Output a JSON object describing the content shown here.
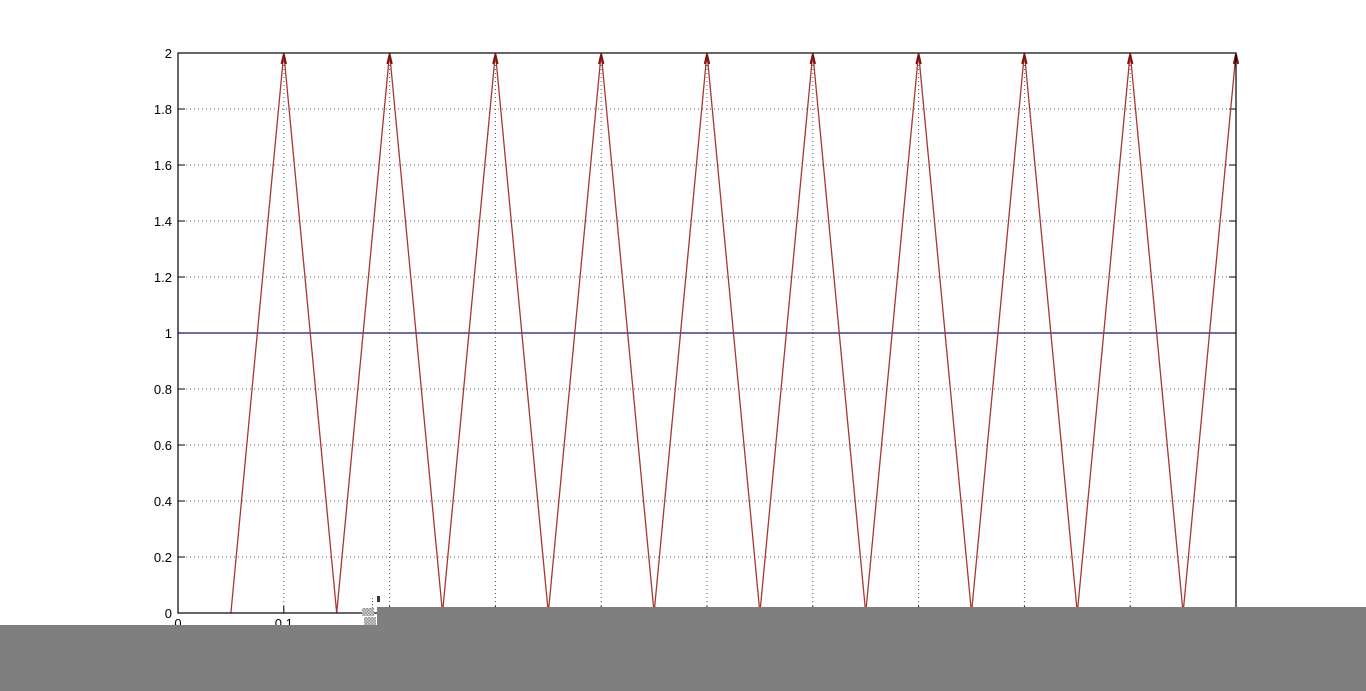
{
  "colors": {
    "background": "#ffffff",
    "axis_border": "#000000",
    "grid": "#5a5a5a",
    "carrier_line": "#a93630",
    "carrier_peak_tip": "#7d1410",
    "reference_line": "#181868",
    "overlay_gray": "#7f7f7f",
    "tick_label": "#000000"
  },
  "chart_data": {
    "type": "line",
    "title": "",
    "xlabel": "",
    "ylabel": "",
    "xlim": [
      0,
      1
    ],
    "ylim": [
      0,
      2
    ],
    "grid": "dotted",
    "legend": "none",
    "box": true,
    "x_ticks": [
      0,
      0.1,
      0.2,
      0.3,
      0.4,
      0.5,
      0.6,
      0.7,
      0.8,
      0.9,
      1.0
    ],
    "x_tick_labels_visible": [
      {
        "v": 0.0,
        "label": "0"
      },
      {
        "v": 0.1,
        "label": "0.1"
      }
    ],
    "y_ticks": [
      {
        "v": 0.0,
        "label": "0"
      },
      {
        "v": 0.2,
        "label": "0.2"
      },
      {
        "v": 0.4,
        "label": "0.4"
      },
      {
        "v": 0.6,
        "label": "0.6"
      },
      {
        "v": 0.8,
        "label": "0.8"
      },
      {
        "v": 1.0,
        "label": "1"
      },
      {
        "v": 1.2,
        "label": "1.2"
      },
      {
        "v": 1.4,
        "label": "1.4"
      },
      {
        "v": 1.6,
        "label": "1.6"
      },
      {
        "v": 1.8,
        "label": "1.8"
      },
      {
        "v": 2.0,
        "label": "2"
      }
    ],
    "x_gridlines": [
      0.1,
      0.2,
      0.3,
      0.4,
      0.5,
      0.6,
      0.7,
      0.8,
      0.9
    ],
    "y_gridlines": [
      0.2,
      0.4,
      0.6,
      0.8,
      1.0,
      1.2,
      1.4,
      1.6,
      1.8
    ],
    "series": [
      {
        "name": "reference-constant-1",
        "color_key": "reference_line",
        "points": [
          [
            0,
            1
          ],
          [
            1,
            1
          ]
        ]
      },
      {
        "name": "triangle-carrier",
        "color_key": "carrier_line",
        "points": [
          [
            0.05,
            0
          ],
          [
            0.1,
            2
          ],
          [
            0.15,
            0
          ],
          [
            0.2,
            2
          ],
          [
            0.25,
            0
          ],
          [
            0.3,
            2
          ],
          [
            0.35,
            0
          ],
          [
            0.4,
            2
          ],
          [
            0.45,
            0
          ],
          [
            0.5,
            2
          ],
          [
            0.55,
            0
          ],
          [
            0.6,
            2
          ],
          [
            0.65,
            0
          ],
          [
            0.7,
            2
          ],
          [
            0.75,
            0
          ],
          [
            0.8,
            2
          ],
          [
            0.85,
            0
          ],
          [
            0.9,
            2
          ],
          [
            0.95,
            0
          ],
          [
            1.0,
            2
          ]
        ],
        "peak_value": 2
      }
    ]
  },
  "overlay": {
    "window_region": "blank-gray-window",
    "taskbar_region": "blank-gray-strip",
    "cursor_artifact": "dithered-cursor-fragment"
  }
}
